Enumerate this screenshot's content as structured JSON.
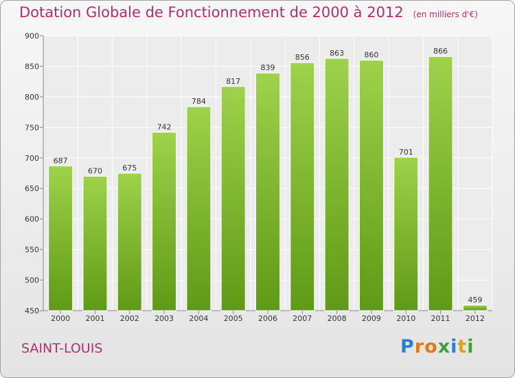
{
  "chart_data": {
    "type": "bar",
    "title": "Dotation Globale de Fonctionnement de 2000 à 2012",
    "unit": "(en milliers d'€)",
    "categories": [
      "2000",
      "2001",
      "2002",
      "2003",
      "2004",
      "2005",
      "2006",
      "2007",
      "2008",
      "2009",
      "2010",
      "2011",
      "2012"
    ],
    "values": [
      687,
      670,
      675,
      742,
      784,
      817,
      839,
      856,
      863,
      860,
      701,
      866,
      459
    ],
    "ylim": [
      450,
      900
    ],
    "yticks": [
      450,
      500,
      550,
      600,
      650,
      700,
      750,
      800,
      850,
      900
    ],
    "grid": true,
    "colors": {
      "bar_light": "#9ed24a",
      "bar_dark": "#5f9a16",
      "title": "#b0306a"
    }
  },
  "footer": {
    "place": "SAINT-LOUIS"
  },
  "logo": {
    "text": "Proxiti",
    "letters": [
      "P",
      "r",
      "o",
      "x",
      "i",
      "t",
      "i"
    ],
    "colors": [
      "#2a7fd0",
      "#e07a1a",
      "#e07a1a",
      "#3aa33a",
      "#2a7fd0",
      "#e0a01a",
      "#3aa33a"
    ]
  }
}
